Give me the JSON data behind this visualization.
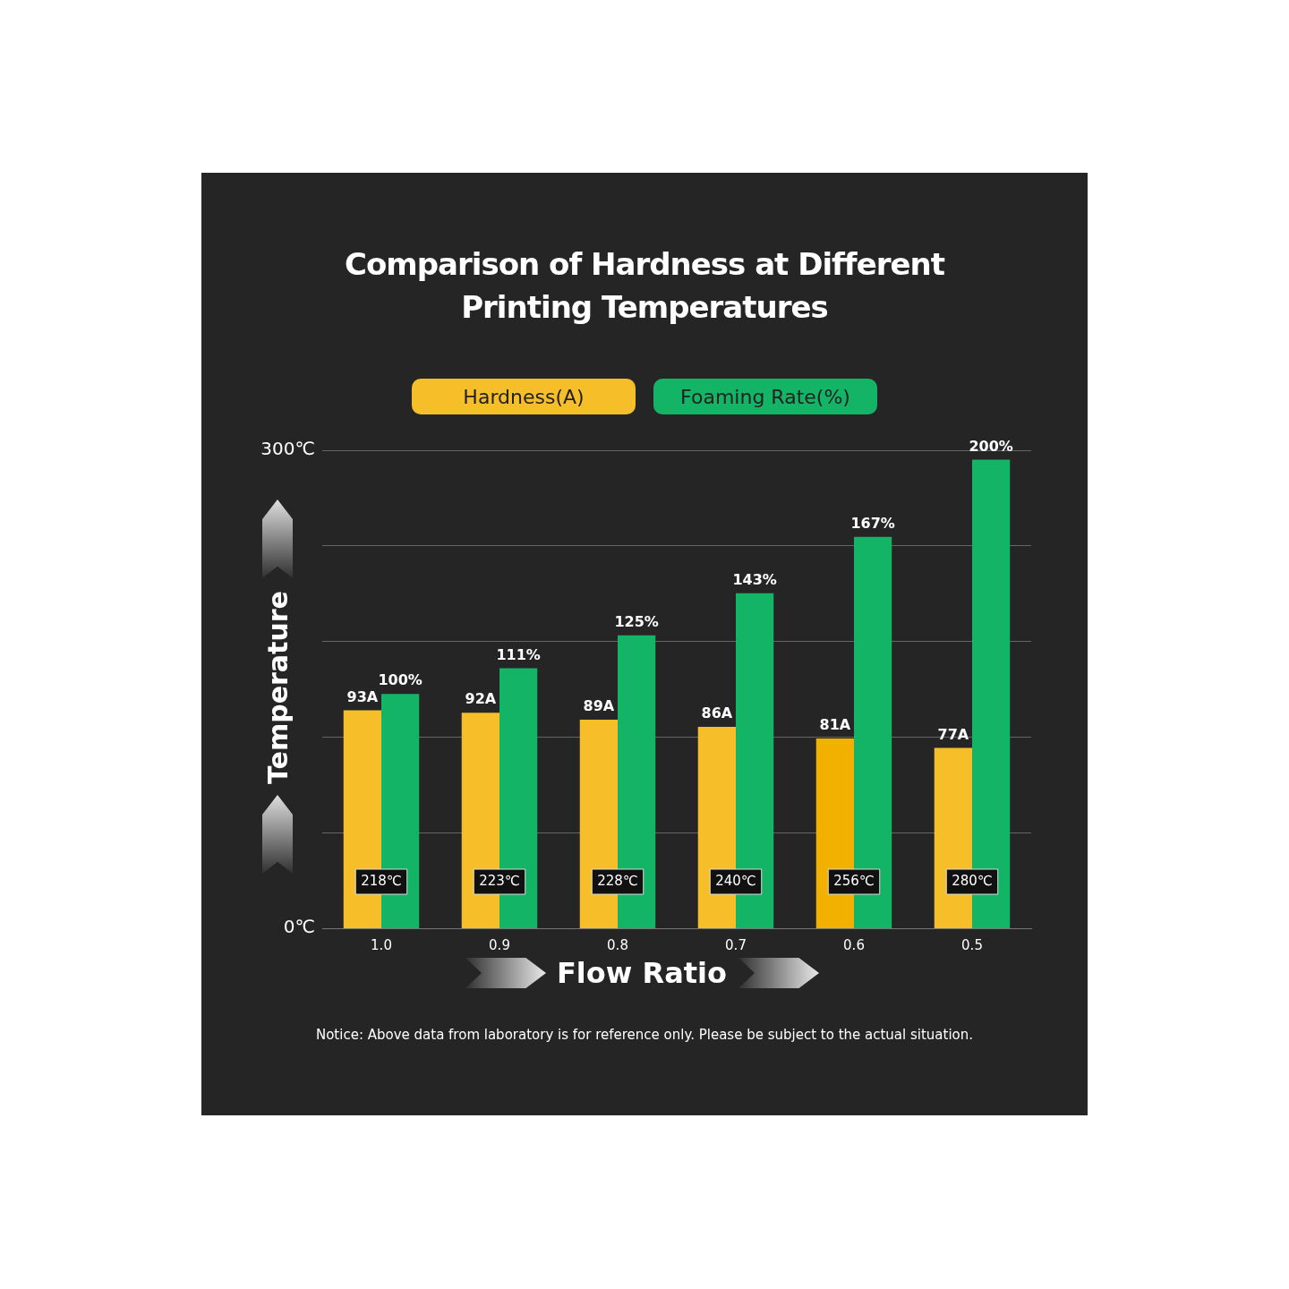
{
  "chart_data": {
    "type": "bar",
    "title": "Comparison of Hardness at Different Printing Temperatures",
    "xlabel": "Flow Ratio",
    "ylabel": "Temperature",
    "categories": [
      "1.0",
      "0.9",
      "0.8",
      "0.7",
      "0.6",
      "0.5"
    ],
    "series": [
      {
        "name": "Hardness(A)",
        "color": "#f6bf2a",
        "colors": [
          "#f6bf2a",
          "#f6bf2a",
          "#f6bf2a",
          "#f6bf2a",
          "#f2b100",
          "#f6bf2a"
        ],
        "values": [
          93,
          92,
          89,
          86,
          81,
          77
        ],
        "value_labels": [
          "93A",
          "92A",
          "89A",
          "86A",
          "81A",
          "77A"
        ],
        "axis": "y2"
      },
      {
        "name": "Foaming Rate(%)",
        "color": "#13b466",
        "values": [
          100,
          111,
          125,
          143,
          167,
          200
        ],
        "value_labels": [
          "100%",
          "111%",
          "125%",
          "143%",
          "167%",
          "200%"
        ],
        "axis": "y2"
      }
    ],
    "ylim": [
      0,
      300
    ],
    "yticks": [
      {
        "value": 0,
        "label": "0℃"
      },
      {
        "value": 60,
        "label": null
      },
      {
        "value": 120,
        "label": null
      },
      {
        "value": 180,
        "label": null
      },
      {
        "value": 240,
        "label": null
      },
      {
        "value": 300,
        "label": "300℃"
      }
    ],
    "y2lim": [
      0,
      204
    ],
    "tick_labels": "xy",
    "grid": "y",
    "legend": "top",
    "annotations": [
      {
        "text": "218℃",
        "x": "1.0"
      },
      {
        "text": "223℃",
        "x": "0.9"
      },
      {
        "text": "228℃",
        "x": "0.8"
      },
      {
        "text": "240℃",
        "x": "0.7"
      },
      {
        "text": "256℃",
        "x": "0.6"
      },
      {
        "text": "280℃",
        "x": "0.5"
      },
      "Notice: Above data from laboratory is for reference only. Please be subject to the actual situation."
    ]
  }
}
